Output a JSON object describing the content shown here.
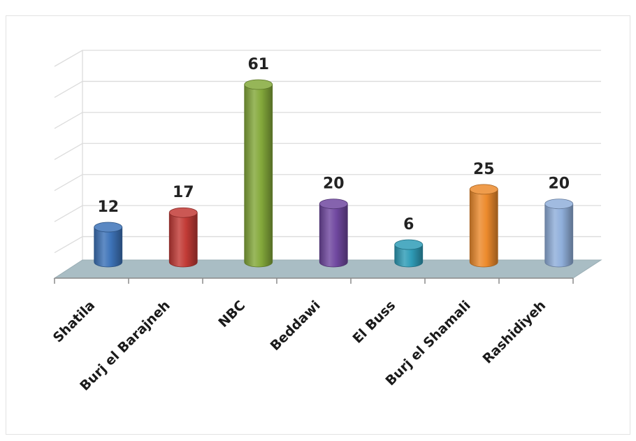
{
  "chart_data": {
    "type": "bar",
    "title": "",
    "xlabel": "",
    "ylabel": "",
    "categories": [
      "Shatila",
      "Burj el Barajneh",
      "NBC",
      "Beddawi",
      "El Buss",
      "Burj el Shamali",
      "Rashidiyeh"
    ],
    "values": [
      12,
      17,
      61,
      20,
      6,
      25,
      20
    ],
    "ylim": [
      0,
      70
    ],
    "grid": true,
    "legend": "none",
    "colors": [
      "#3d73b8",
      "#c23b36",
      "#84a93b",
      "#7048a0",
      "#2f9cb7",
      "#ec8a2c",
      "#90afdb"
    ],
    "floor_color": "#a9bdc4",
    "style": "3d-cylinder"
  }
}
